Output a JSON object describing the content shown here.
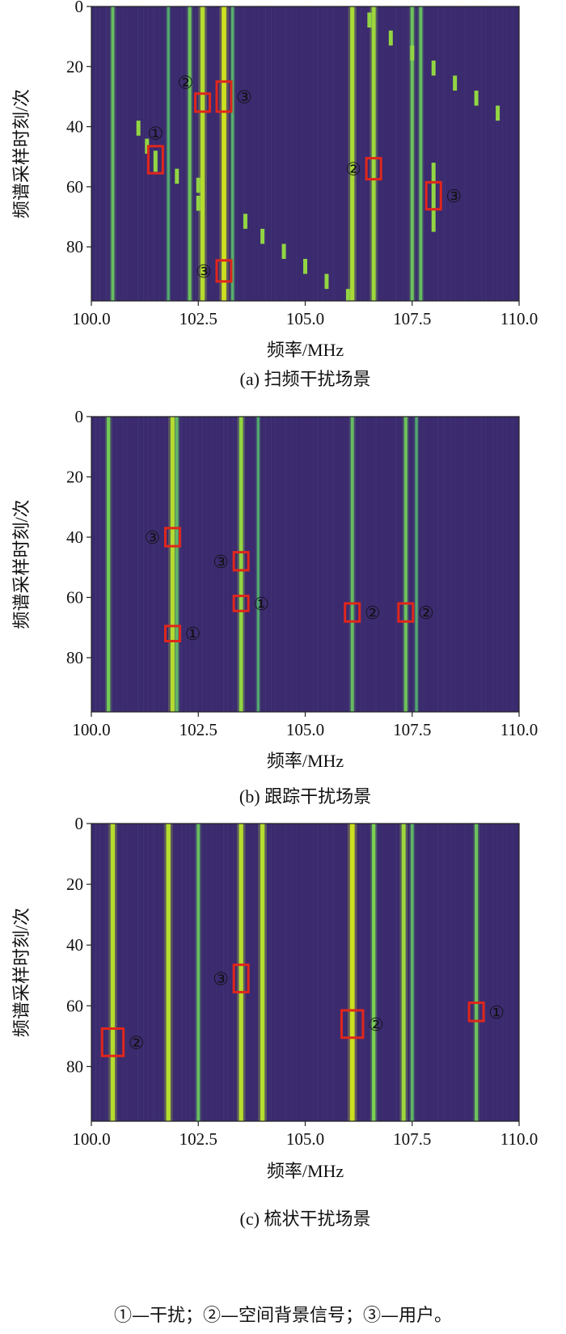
{
  "chart_data": [
    {
      "type": "heatmap",
      "caption": "(a) 扫频干扰场景",
      "xlabel": "频率/MHz",
      "ylabel": "频谱采样时刻/次",
      "xlim": [
        100.0,
        110.0
      ],
      "ylim": [
        0,
        98
      ],
      "x_ticks": [
        "100.0",
        "102.5",
        "105.0",
        "107.5",
        "110.0"
      ],
      "y_ticks": [
        "0",
        "20",
        "40",
        "60",
        "80"
      ],
      "colors": {
        "background": "#3b2a6e",
        "mid": "#2a7f8e",
        "high": "#7ad151",
        "peak": "#d8e219"
      },
      "continuous_signals": [
        {
          "freq": 100.5,
          "intensity": 0.45
        },
        {
          "freq": 101.8,
          "intensity": 0.3
        },
        {
          "freq": 102.3,
          "intensity": 0.5
        },
        {
          "freq": 102.6,
          "intensity": 0.85
        },
        {
          "freq": 103.1,
          "intensity": 0.95
        },
        {
          "freq": 103.3,
          "intensity": 0.35
        },
        {
          "freq": 106.1,
          "intensity": 0.8
        },
        {
          "freq": 106.6,
          "intensity": 0.75
        },
        {
          "freq": 107.5,
          "intensity": 0.5
        },
        {
          "freq": 107.7,
          "intensity": 0.45
        }
      ],
      "sweep_segments": [
        {
          "freq": 101.1,
          "t_start": 38,
          "t_end": 43
        },
        {
          "freq": 101.3,
          "t_start": 44,
          "t_end": 49
        },
        {
          "freq": 101.5,
          "t_start": 48,
          "t_end": 55
        },
        {
          "freq": 102.0,
          "t_start": 54,
          "t_end": 59
        },
        {
          "freq": 102.5,
          "t_start": 57,
          "t_end": 62
        },
        {
          "freq": 102.5,
          "t_start": 63,
          "t_end": 68
        },
        {
          "freq": 103.6,
          "t_start": 69,
          "t_end": 74
        },
        {
          "freq": 104.0,
          "t_start": 74,
          "t_end": 79
        },
        {
          "freq": 104.5,
          "t_start": 79,
          "t_end": 84
        },
        {
          "freq": 105.0,
          "t_start": 84,
          "t_end": 89
        },
        {
          "freq": 105.5,
          "t_start": 89,
          "t_end": 94
        },
        {
          "freq": 106.0,
          "t_start": 94,
          "t_end": 98
        },
        {
          "freq": 106.5,
          "t_start": 2,
          "t_end": 7
        },
        {
          "freq": 107.0,
          "t_start": 8,
          "t_end": 13
        },
        {
          "freq": 107.5,
          "t_start": 13,
          "t_end": 18
        },
        {
          "freq": 108.0,
          "t_start": 18,
          "t_end": 23
        },
        {
          "freq": 108.5,
          "t_start": 23,
          "t_end": 28
        },
        {
          "freq": 109.0,
          "t_start": 28,
          "t_end": 33
        },
        {
          "freq": 109.5,
          "t_start": 33,
          "t_end": 38
        },
        {
          "freq": 108.0,
          "t_start": 52,
          "t_end": 75
        }
      ],
      "annotations": [
        {
          "label": "①",
          "freq": 101.5,
          "t_center": 51,
          "half_w": 0.17,
          "half_h": 4.5,
          "label_side": "top"
        },
        {
          "label": "②",
          "freq": 102.6,
          "t_center": 32,
          "half_w": 0.17,
          "half_h": 3,
          "label_side": "top-left"
        },
        {
          "label": "③",
          "freq": 103.1,
          "t_center": 30,
          "half_w": 0.17,
          "half_h": 5,
          "label_side": "right"
        },
        {
          "label": "②",
          "freq": 106.6,
          "t_center": 54,
          "half_w": 0.17,
          "half_h": 3.5,
          "label_side": "left"
        },
        {
          "label": "③",
          "freq": 108.0,
          "t_center": 63,
          "half_w": 0.17,
          "half_h": 4.5,
          "label_side": "right"
        },
        {
          "label": "③",
          "freq": 103.1,
          "t_center": 88,
          "half_w": 0.17,
          "half_h": 3.5,
          "label_side": "left"
        }
      ]
    },
    {
      "type": "heatmap",
      "caption": "(b) 跟踪干扰场景",
      "xlabel": "频率/MHz",
      "ylabel": "频谱采样时刻/次",
      "xlim": [
        100.0,
        110.0
      ],
      "ylim": [
        0,
        98
      ],
      "x_ticks": [
        "100.0",
        "102.5",
        "105.0",
        "107.5",
        "110.0"
      ],
      "y_ticks": [
        "0",
        "20",
        "40",
        "60",
        "80"
      ],
      "colors": {
        "background": "#3b2a6e",
        "mid": "#2a7f8e",
        "high": "#7ad151",
        "peak": "#d8e219"
      },
      "continuous_signals": [
        {
          "freq": 100.4,
          "intensity": 0.55
        },
        {
          "freq": 101.9,
          "intensity": 0.85
        },
        {
          "freq": 102.0,
          "intensity": 0.4
        },
        {
          "freq": 103.5,
          "intensity": 0.7
        },
        {
          "freq": 103.9,
          "intensity": 0.3
        },
        {
          "freq": 106.1,
          "intensity": 0.45
        },
        {
          "freq": 107.35,
          "intensity": 0.5
        },
        {
          "freq": 107.6,
          "intensity": 0.3
        }
      ],
      "sweep_segments": [],
      "annotations": [
        {
          "label": "③",
          "freq": 101.9,
          "t_center": 40,
          "half_w": 0.17,
          "half_h": 3,
          "label_side": "left"
        },
        {
          "label": "①",
          "freq": 101.9,
          "t_center": 72,
          "half_w": 0.17,
          "half_h": 2.5,
          "label_side": "right"
        },
        {
          "label": "③",
          "freq": 103.5,
          "t_center": 48,
          "half_w": 0.17,
          "half_h": 3,
          "label_side": "left"
        },
        {
          "label": "①",
          "freq": 103.5,
          "t_center": 62,
          "half_w": 0.17,
          "half_h": 2.5,
          "label_side": "right"
        },
        {
          "label": "②",
          "freq": 106.1,
          "t_center": 65,
          "half_w": 0.17,
          "half_h": 3,
          "label_side": "right"
        },
        {
          "label": "②",
          "freq": 107.35,
          "t_center": 65,
          "half_w": 0.17,
          "half_h": 3,
          "label_side": "right"
        }
      ]
    },
    {
      "type": "heatmap",
      "caption": "(c) 梳状干扰场景",
      "xlabel": "频率/MHz",
      "ylabel": "频谱采样时刻/次",
      "xlim": [
        100.0,
        110.0
      ],
      "ylim": [
        0,
        98
      ],
      "x_ticks": [
        "100.0",
        "102.5",
        "105.0",
        "107.5",
        "110.0"
      ],
      "y_ticks": [
        "0",
        "20",
        "40",
        "60",
        "80"
      ],
      "colors": {
        "background": "#3b2a6e",
        "mid": "#2a7f8e",
        "high": "#7ad151",
        "peak": "#d8e219"
      },
      "continuous_signals": [
        {
          "freq": 100.5,
          "intensity": 0.85
        },
        {
          "freq": 101.8,
          "intensity": 0.85
        },
        {
          "freq": 102.5,
          "intensity": 0.45
        },
        {
          "freq": 103.5,
          "intensity": 0.85
        },
        {
          "freq": 104.0,
          "intensity": 0.85
        },
        {
          "freq": 106.1,
          "intensity": 0.95
        },
        {
          "freq": 106.6,
          "intensity": 0.6
        },
        {
          "freq": 107.3,
          "intensity": 0.75
        },
        {
          "freq": 107.5,
          "intensity": 0.4
        },
        {
          "freq": 109.0,
          "intensity": 0.5
        }
      ],
      "sweep_segments": [],
      "annotations": [
        {
          "label": "②",
          "freq": 100.5,
          "t_center": 72,
          "half_w": 0.25,
          "half_h": 4.5,
          "label_side": "right"
        },
        {
          "label": "③",
          "freq": 103.5,
          "t_center": 51,
          "half_w": 0.17,
          "half_h": 4.5,
          "label_side": "left"
        },
        {
          "label": "②",
          "freq": 106.1,
          "t_center": 66,
          "half_w": 0.25,
          "half_h": 4.5,
          "label_side": "right"
        },
        {
          "label": "①",
          "freq": 109.0,
          "t_center": 62,
          "half_w": 0.17,
          "half_h": 3,
          "label_side": "right"
        }
      ]
    }
  ],
  "legend": "①—干扰；②—空间背景信号；③—用户。"
}
